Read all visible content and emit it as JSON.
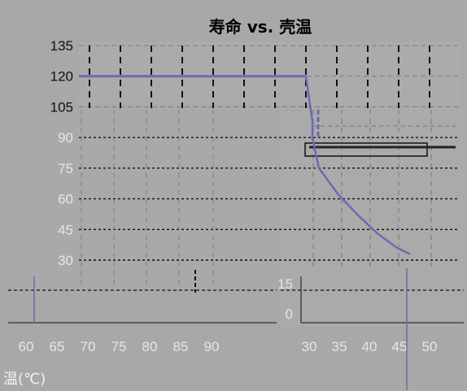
{
  "chart_data": {
    "type": "line",
    "title": "寿命 vs. 壳温",
    "xlabel": "温(℃)",
    "ylabel": "",
    "upper_panel": {
      "ylim": [
        30,
        135
      ],
      "xlim": [
        25,
        53
      ],
      "y_ticks": [
        "135",
        "120",
        "105",
        "90",
        "75",
        "60",
        "45",
        "30"
      ],
      "series": [
        {
          "color": "#6b6bb5",
          "points": [
            [
              25,
              120
            ],
            [
              25.5,
              120
            ],
            [
              30,
              120
            ],
            [
              35,
              120
            ],
            [
              40,
              120
            ],
            [
              45,
              120
            ],
            [
              50,
              120
            ],
            [
              53,
              120
            ]
          ]
        }
      ]
    },
    "lower_panel": {
      "ylim": [
        0,
        15
      ],
      "xlim": [
        30,
        50
      ],
      "y_ticks": [
        "15",
        "0"
      ],
      "x_ticks": [
        "30",
        "35",
        "40",
        "45",
        "50"
      ],
      "series": [
        {
          "color": "#6b6bb5",
          "points": [
            [
              30,
              120
            ],
            [
              31,
              98
            ],
            [
              31,
              90
            ],
            [
              32,
              75
            ],
            [
              35,
              62
            ],
            [
              38,
              52
            ],
            [
              41,
              43
            ],
            [
              44,
              36
            ],
            [
              46,
              33
            ]
          ]
        }
      ]
    },
    "left_x_ticks": [
      "60",
      "65",
      "70",
      "75",
      "80",
      "85",
      "90"
    ],
    "grid": true,
    "colors": {
      "series": "#6b6bb5",
      "background": "#a8a8a8",
      "grid": "#111111"
    }
  }
}
